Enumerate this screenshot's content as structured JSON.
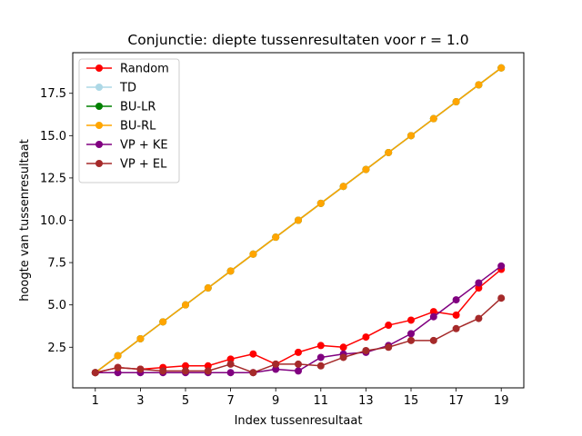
{
  "chart_data": {
    "type": "line",
    "title": "Conjunctie: diepte tussenresultaten voor r = 1.0",
    "xlabel": "Index tussenresultaat",
    "ylabel": "hoogte van tussenresultaat",
    "xlim": [
      0.0,
      20.0
    ],
    "ylim": [
      0.1,
      19.9
    ],
    "xticks": [
      1,
      3,
      5,
      7,
      9,
      11,
      13,
      15,
      17,
      19
    ],
    "yticks": [
      2.5,
      5.0,
      7.5,
      10.0,
      12.5,
      15.0,
      17.5
    ],
    "ytick_labels": [
      "2.5",
      "5.0",
      "7.5",
      "10.0",
      "12.5",
      "15.0",
      "17.5"
    ],
    "grid": false,
    "legend_position": "top-left",
    "x": [
      1,
      2,
      3,
      4,
      5,
      6,
      7,
      8,
      9,
      10,
      11,
      12,
      13,
      14,
      15,
      16,
      17,
      18,
      19
    ],
    "series": [
      {
        "name": "Random",
        "color": "#ff0000",
        "values": [
          1.0,
          1.3,
          1.2,
          1.3,
          1.4,
          1.4,
          1.8,
          2.1,
          1.5,
          2.2,
          2.6,
          2.5,
          3.1,
          3.8,
          4.1,
          4.6,
          4.4,
          6.0,
          7.1
        ]
      },
      {
        "name": "TD",
        "color": "#add8e6",
        "values": [
          1,
          2,
          3,
          4,
          5,
          6,
          7,
          8,
          9,
          10,
          11,
          12,
          13,
          14,
          15,
          16,
          17,
          18,
          19
        ]
      },
      {
        "name": "BU-LR",
        "color": "#008000",
        "values": [
          1,
          2,
          3,
          4,
          5,
          6,
          7,
          8,
          9,
          10,
          11,
          12,
          13,
          14,
          15,
          16,
          17,
          18,
          19
        ]
      },
      {
        "name": "BU-RL",
        "color": "#ffa500",
        "values": [
          1,
          2,
          3,
          4,
          5,
          6,
          7,
          8,
          9,
          10,
          11,
          12,
          13,
          14,
          15,
          16,
          17,
          18,
          19
        ]
      },
      {
        "name": "VP + KE",
        "color": "#800080",
        "values": [
          1.0,
          1.0,
          1.0,
          1.0,
          1.0,
          1.0,
          1.0,
          1.0,
          1.2,
          1.1,
          1.9,
          2.1,
          2.2,
          2.6,
          3.3,
          4.3,
          5.3,
          6.3,
          7.3
        ]
      },
      {
        "name": "VP + EL",
        "color": "#a52a2a",
        "values": [
          1.0,
          1.3,
          1.2,
          1.1,
          1.1,
          1.1,
          1.5,
          1.0,
          1.5,
          1.5,
          1.4,
          1.9,
          2.3,
          2.5,
          2.9,
          2.9,
          3.6,
          4.2,
          5.4
        ]
      }
    ]
  }
}
